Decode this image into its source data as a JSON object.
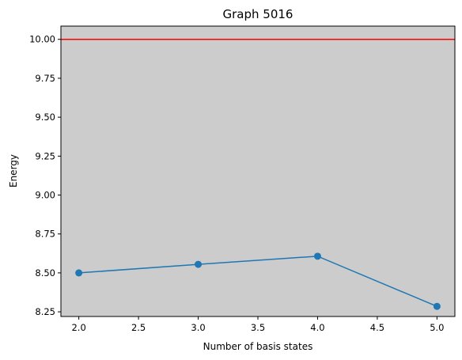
{
  "chart_data": {
    "type": "line",
    "title": "Graph 5016",
    "xlabel": "Number of basis states",
    "ylabel": "Energy",
    "xlim": [
      1.85,
      5.15
    ],
    "ylim": [
      8.22,
      10.085
    ],
    "xticks": [
      2.0,
      2.5,
      3.0,
      3.5,
      4.0,
      4.5,
      5.0
    ],
    "xtick_labels": [
      "2.0",
      "2.5",
      "3.0",
      "3.5",
      "4.0",
      "4.5",
      "5.0"
    ],
    "yticks": [
      8.25,
      8.5,
      8.75,
      9.0,
      9.25,
      9.5,
      9.75,
      10.0
    ],
    "ytick_labels": [
      "8.25",
      "8.50",
      "8.75",
      "9.00",
      "9.25",
      "9.50",
      "9.75",
      "10.00"
    ],
    "series": [
      {
        "x": [
          2,
          3,
          4,
          5
        ],
        "y": [
          8.5,
          8.555,
          8.607,
          8.285
        ],
        "color": "#1f77b4",
        "marker": "circle"
      }
    ],
    "reference_line": {
      "y": 10.0,
      "color": "#ff0000"
    },
    "background_color": "#cccccc",
    "grid": false,
    "legend": false
  }
}
